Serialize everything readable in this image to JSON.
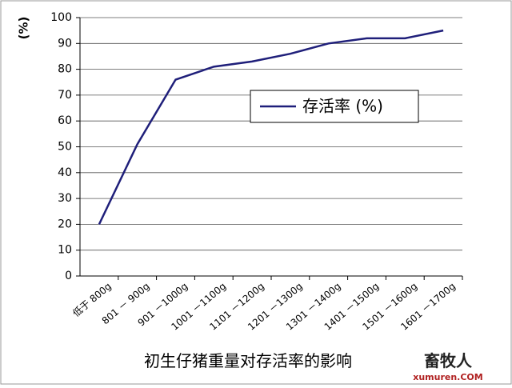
{
  "chart_data": {
    "type": "line",
    "title": "初生仔猪重量对存活率的影响",
    "y_label": "(%)",
    "categories": [
      "低于 800g",
      "801 － 900g",
      "901 －1000g",
      "1001 －1100g",
      "1101 －1200g",
      "1201 －1300g",
      "1301 －1400g",
      "1401 －1500g",
      "1501 －1600g",
      "1601 －1700g"
    ],
    "series": [
      {
        "name": "存活率 (%)",
        "color": "#1f1f7a",
        "values": [
          20,
          51,
          76,
          81,
          83,
          86,
          90,
          92,
          92,
          95
        ]
      }
    ],
    "ylim": [
      0,
      100
    ],
    "yticks": [
      0,
      10,
      20,
      30,
      40,
      50,
      60,
      70,
      80,
      90,
      100
    ],
    "grid": true,
    "legend": "upper right"
  },
  "watermark": {
    "brand": "畜牧人",
    "site": "xumuren.COM"
  }
}
